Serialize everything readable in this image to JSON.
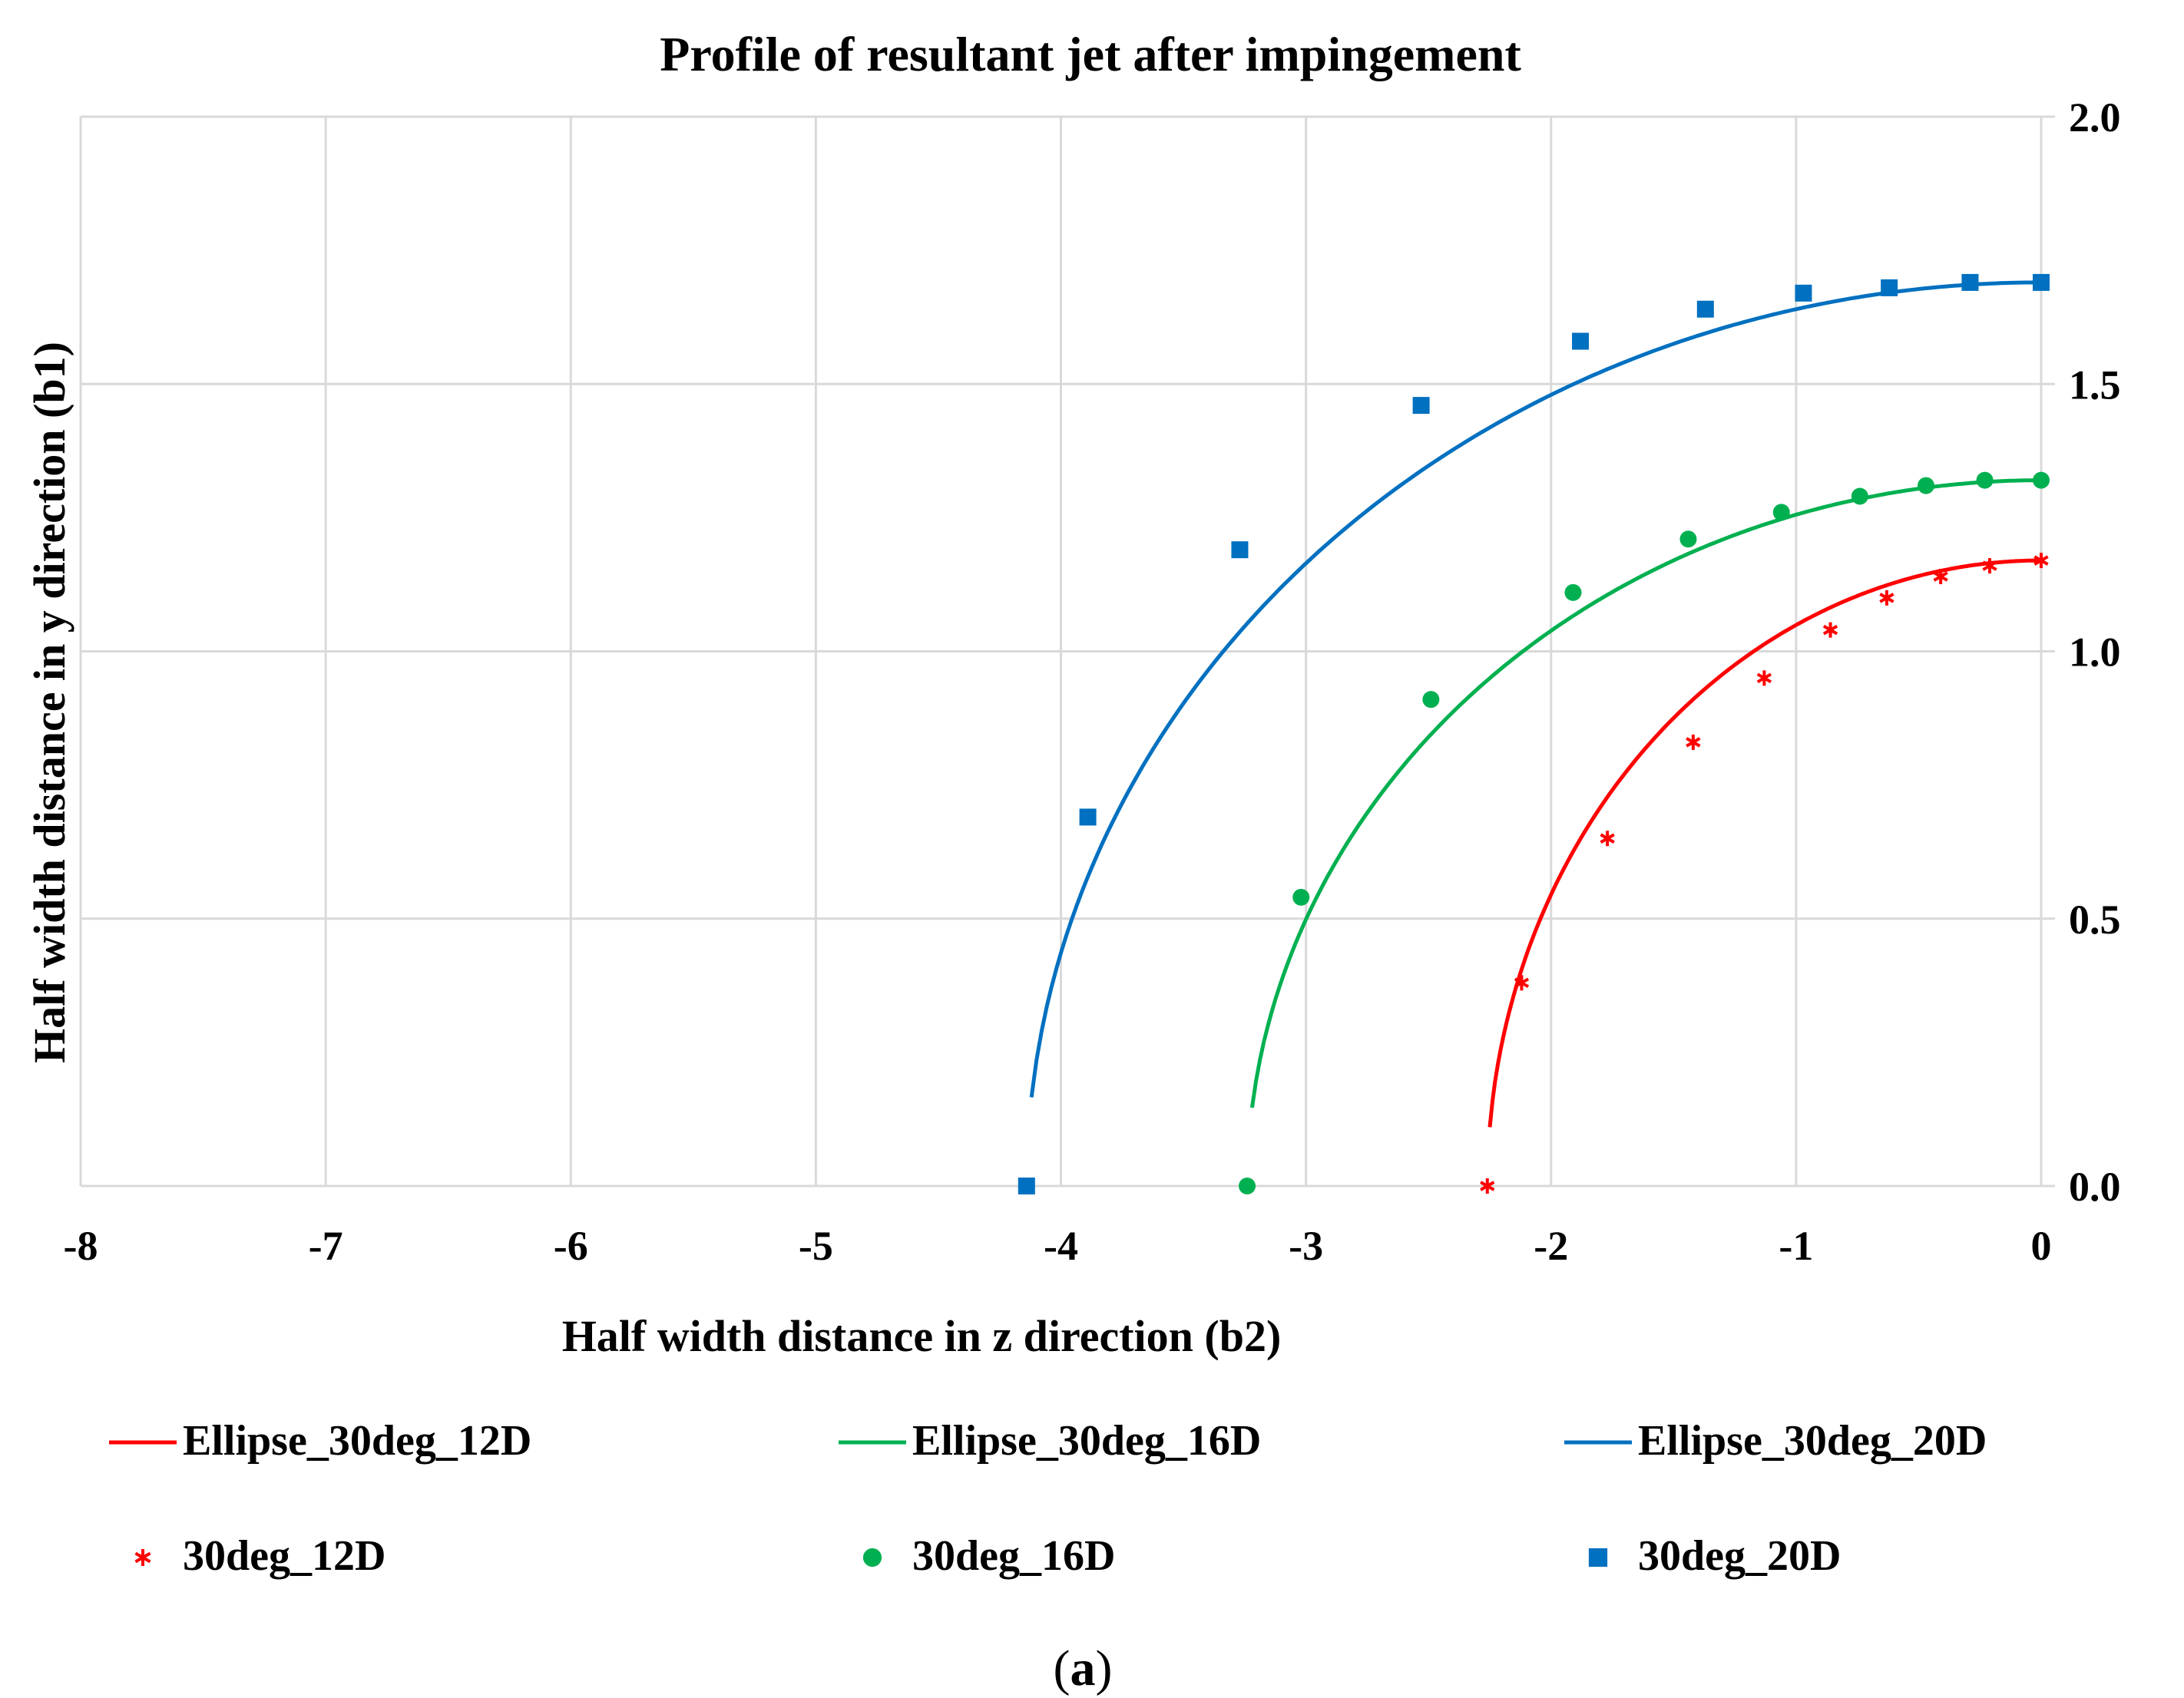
{
  "chart_data": {
    "type": "scatter",
    "title": "Profile of resultant jet after impingement",
    "xlabel": "Half width distance in z direction (b2)",
    "ylabel": "Half width distance in y direction (b1)",
    "xlim": [
      -8,
      0
    ],
    "ylim": [
      0,
      2
    ],
    "xticks": [
      "-8",
      "-7",
      "-6",
      "-5",
      "-4",
      "-3",
      "-2",
      "-1",
      "0"
    ],
    "yticks": [
      "0.0",
      "0.5",
      "1.0",
      "1.5",
      "2.0"
    ],
    "grid": true,
    "legend_position": "bottom",
    "caption_open": "(",
    "caption_letter": "a",
    "caption_close": ")",
    "series": [
      {
        "name": "Ellipse_30deg_12D",
        "kind": "line",
        "color": "#ff0000",
        "a": 2.26,
        "b": 1.17,
        "x_start": -2.25
      },
      {
        "name": "Ellipse_30deg_16D",
        "kind": "line",
        "color": "#00b050",
        "a": 3.24,
        "b": 1.32,
        "x_start": -3.22
      },
      {
        "name": "Ellipse_30deg_20D",
        "kind": "line",
        "color": "#0070c0",
        "a": 4.14,
        "b": 1.69,
        "x_start": -4.12
      },
      {
        "name": "30deg_12D",
        "kind": "marker",
        "marker": "star",
        "color": "#ff0000",
        "x": [
          -2.26,
          -2.12,
          -1.77,
          -1.42,
          -1.13,
          -0.86,
          -0.63,
          -0.41,
          -0.21,
          0.0
        ],
        "y": [
          0.0,
          0.38,
          0.65,
          0.83,
          0.95,
          1.04,
          1.1,
          1.14,
          1.16,
          1.17
        ]
      },
      {
        "name": "30deg_16D",
        "kind": "marker",
        "marker": "circle",
        "color": "#00b050",
        "x": [
          -3.24,
          -3.02,
          -2.49,
          -1.91,
          -1.44,
          -1.06,
          -0.74,
          -0.47,
          -0.23,
          0.0
        ],
        "y": [
          0.0,
          0.54,
          0.91,
          1.11,
          1.21,
          1.26,
          1.29,
          1.31,
          1.32,
          1.32
        ]
      },
      {
        "name": "30deg_20D",
        "kind": "marker",
        "marker": "square",
        "color": "#0070c0",
        "x": [
          -4.14,
          -3.89,
          -3.27,
          -2.53,
          -1.88,
          -1.37,
          -0.97,
          -0.62,
          -0.29,
          0.0
        ],
        "y": [
          0.0,
          0.69,
          1.19,
          1.46,
          1.58,
          1.64,
          1.67,
          1.68,
          1.69,
          1.69
        ]
      }
    ]
  }
}
